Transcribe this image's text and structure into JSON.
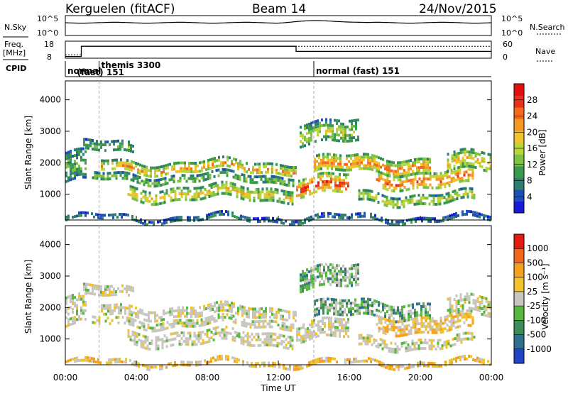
{
  "header": {
    "radar": "Kerguelen (fitACF)",
    "beam": "Beam 14",
    "date": "24/Nov/2015"
  },
  "panels": {
    "nsky_label": "N.Sky",
    "nsearch_label": "N.Search",
    "freq_label_top": "Freq.",
    "freq_label_unit": "[MHz]",
    "nave_label": "Nave",
    "cpid_label": "CPID",
    "nsky_ticks": [
      "10^5",
      "10^0"
    ],
    "nsearch_ticks": [
      "10^5",
      "10^0"
    ],
    "freq_ticks": [
      "18",
      "8"
    ],
    "nave_ticks": [
      "60",
      "0"
    ],
    "cpid_segments": [
      {
        "start_h": 0,
        "end_h": 1.9,
        "label": "normal"
      },
      {
        "start_h": 1.9,
        "end_h": 14.0,
        "label": "themis 3300",
        "label2": "(fast) 151"
      },
      {
        "start_h": 14.0,
        "end_h": 24,
        "label": "normal (fast) 151"
      }
    ],
    "freq_steps": [
      {
        "start_h": 0,
        "end_h": 0.9,
        "mhz": 9.0
      },
      {
        "start_h": 0.9,
        "end_h": 13.0,
        "mhz": 15.0
      },
      {
        "start_h": 13.0,
        "end_h": 24,
        "mhz": 12.0
      }
    ],
    "nave_steps": [
      {
        "start_h": 0,
        "end_h": 0.9,
        "value": 12
      },
      {
        "start_h": 0.9,
        "end_h": 13.0,
        "value": 42
      },
      {
        "start_h": 13.0,
        "end_h": 24,
        "value": 42
      }
    ]
  },
  "chart_data": [
    {
      "type": "heatmap",
      "name": "power",
      "ylabel": "Slant Range [km]",
      "xlabel": "Time UT",
      "ylim": [
        180,
        4600
      ],
      "xlim_hours": [
        0,
        24
      ],
      "yticks": [
        1000,
        2000,
        3000,
        4000
      ],
      "xtick_labels": [
        "00:00",
        "04:00",
        "08:00",
        "12:00",
        "16:00",
        "20:00",
        "00:00"
      ],
      "colorbar": {
        "label": "Power [dB]",
        "ticks": [
          "4",
          "8",
          "12",
          "16",
          "20",
          "24",
          "28"
        ],
        "colors": [
          "#1a1ad9",
          "#1f4fb5",
          "#2e7d6e",
          "#3a9a4c",
          "#7fc243",
          "#b8d63a",
          "#f0c22c",
          "#f59a25",
          "#f26b1e",
          "#e8311a",
          "#e30f0f"
        ]
      }
    },
    {
      "type": "heatmap",
      "name": "velocity",
      "ylabel": "Slant Range [km]",
      "xlabel": "Time UT",
      "ylim": [
        180,
        4600
      ],
      "xlim_hours": [
        0,
        24
      ],
      "yticks": [
        1000,
        2000,
        3000,
        4000
      ],
      "xtick_labels": [
        "00:00",
        "04:00",
        "08:00",
        "12:00",
        "16:00",
        "20:00",
        "00:00"
      ],
      "colorbar": {
        "label": "Velocity [m s⁻¹]",
        "ticks": [
          "1000",
          "500",
          "100",
          "25",
          "-25",
          "-100",
          "-500",
          "-1000"
        ],
        "colors": [
          "#2244c4",
          "#2f6f8f",
          "#3e8c5a",
          "#56b840",
          "#c8c6bf",
          "#f0c22c",
          "#f5a11f",
          "#f2661c",
          "#e31c12"
        ]
      }
    }
  ],
  "bands": [
    {
      "t0": 0.0,
      "t1": 1.2,
      "r0": 1400,
      "r1": 2350,
      "p": 10,
      "v": "gray"
    },
    {
      "t0": 1.0,
      "t1": 3.8,
      "r0": 2300,
      "r1": 2650,
      "p": 10,
      "v": "gray"
    },
    {
      "t0": 2.0,
      "t1": 13.0,
      "r0": 1700,
      "r1": 2050,
      "p": 20,
      "v": "gray"
    },
    {
      "t0": 1.5,
      "t1": 12.8,
      "r0": 1400,
      "r1": 1650,
      "p": 12,
      "v": "gray"
    },
    {
      "t0": 3.5,
      "t1": 12.8,
      "r0": 850,
      "r1": 1250,
      "p": 18,
      "v": "gray"
    },
    {
      "t0": 13.0,
      "t1": 16.0,
      "r0": 1000,
      "r1": 1600,
      "p": 26,
      "v": "gray"
    },
    {
      "t0": 14.0,
      "t1": 20.5,
      "r0": 1700,
      "r1": 2200,
      "p": 22,
      "v": "green"
    },
    {
      "t0": 17.5,
      "t1": 23.0,
      "r0": 1250,
      "r1": 1750,
      "p": 24,
      "v": "orange"
    },
    {
      "t0": 16.5,
      "t1": 23.0,
      "r0": 750,
      "r1": 1050,
      "p": 16,
      "v": "gray"
    },
    {
      "t0": 13.2,
      "t1": 16.5,
      "r0": 2600,
      "r1": 3300,
      "p": 14,
      "v": "green"
    },
    {
      "t0": 21.5,
      "t1": 24.0,
      "r0": 1700,
      "r1": 2300,
      "p": 18,
      "v": "gray"
    },
    {
      "t0": 0.0,
      "t1": 24.0,
      "r0": 200,
      "r1": 320,
      "p": 8,
      "v": "orange"
    }
  ]
}
